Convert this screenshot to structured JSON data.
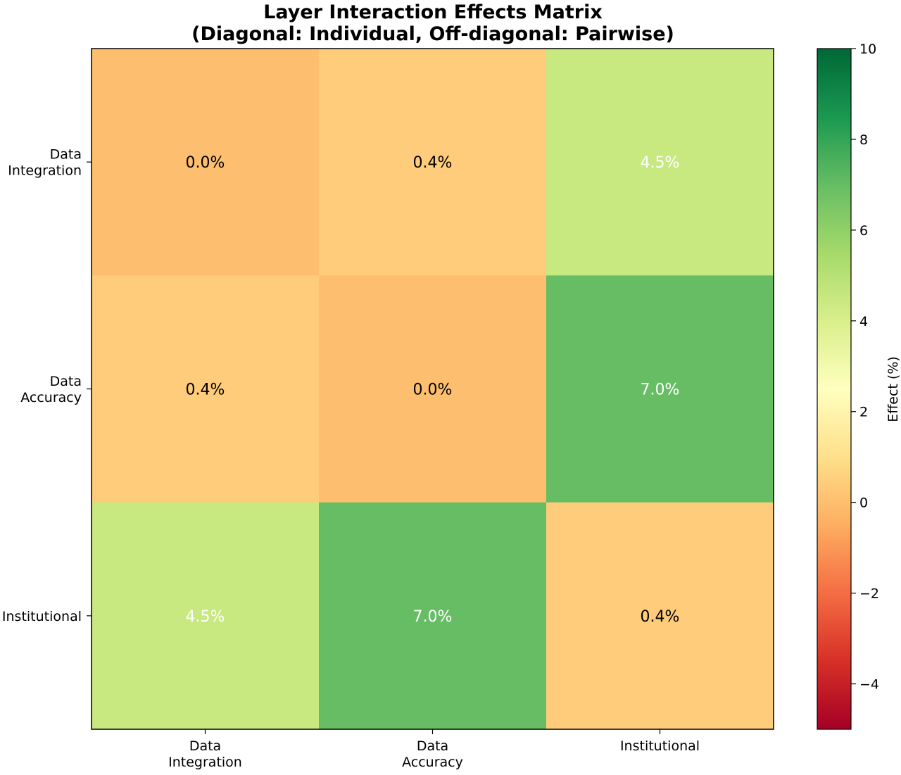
{
  "chart_data": {
    "type": "heatmap",
    "title": "Layer Interaction Effects Matrix",
    "subtitle": "(Diagonal: Individual, Off-diagonal: Pairwise)",
    "rows": [
      [
        "Data",
        "Integration"
      ],
      [
        "Data",
        "Accuracy"
      ],
      [
        "Institutional"
      ]
    ],
    "columns": [
      [
        "Data",
        "Integration"
      ],
      [
        "Data",
        "Accuracy"
      ],
      [
        "Institutional"
      ]
    ],
    "values": [
      [
        0.0,
        0.4,
        4.5
      ],
      [
        0.4,
        0.0,
        7.0
      ],
      [
        4.5,
        7.0,
        0.4
      ]
    ],
    "cell_labels": [
      [
        "0.0%",
        "0.4%",
        "4.5%"
      ],
      [
        "0.4%",
        "0.0%",
        "7.0%"
      ],
      [
        "4.5%",
        "7.0%",
        "0.4%"
      ]
    ],
    "colormap": "RdYlGn",
    "colorbar": {
      "label": "Effect (%)",
      "range": [
        -5,
        10
      ],
      "ticks": [
        -4,
        -2,
        0,
        2,
        4,
        6,
        8,
        10
      ],
      "tick_labels": [
        "−4",
        "−2",
        "0",
        "2",
        "4",
        "6",
        "8",
        "10"
      ]
    },
    "label_colors": {
      "light": "#ffffff",
      "dark": "#000000"
    },
    "light_text_threshold": 3
  }
}
